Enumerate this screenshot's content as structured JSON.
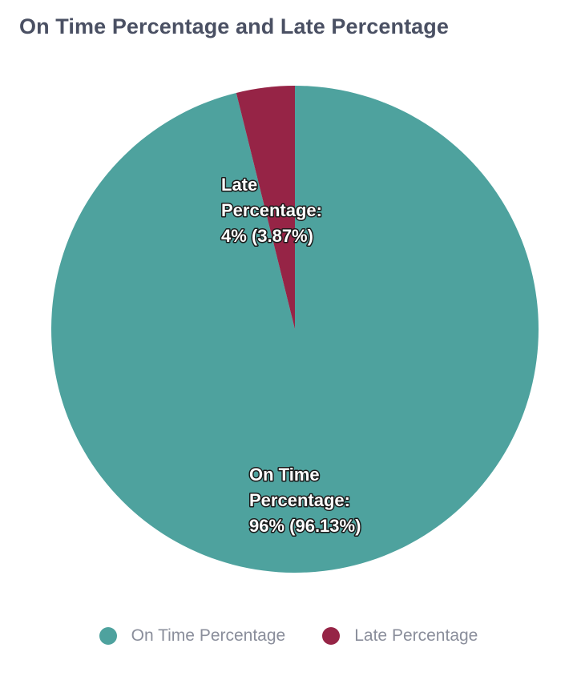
{
  "chart_data": {
    "type": "pie",
    "title": "On Time Percentage and Late Percentage",
    "slices": [
      {
        "name": "On Time Percentage",
        "value": 96.13,
        "color": "#4ea29e",
        "label_lines": [
          "On Time",
          "Percentage:",
          "96% (96.13%)"
        ]
      },
      {
        "name": "Late Percentage",
        "value": 3.87,
        "color": "#962446",
        "label_lines": [
          "Late",
          "Percentage:",
          "4% (3.87%)"
        ]
      }
    ],
    "legend": {
      "placement": "bottom",
      "entries": [
        "On Time Percentage",
        "Late Percentage"
      ]
    }
  }
}
